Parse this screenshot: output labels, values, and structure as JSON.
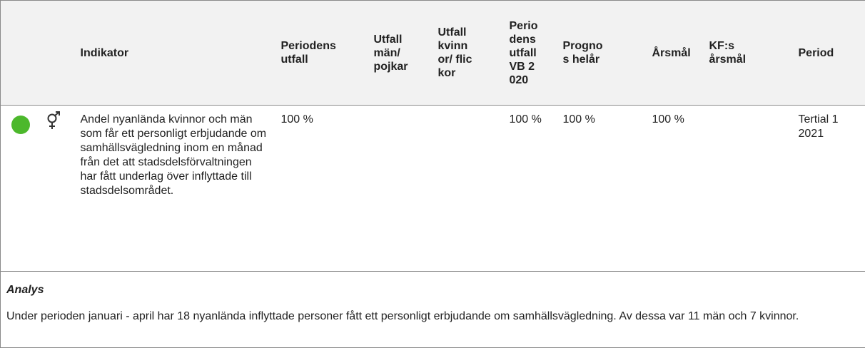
{
  "table": {
    "header": [
      "Indikator",
      "Periodens utfall",
      "Utfall män/ pojkar",
      "Utfall kvinnor/ flickor",
      "Periodens utfall VB 2020",
      "Prognos helår",
      "Årsmål",
      "KF:s årsmål",
      "Period"
    ],
    "row": {
      "indikator": "Andel nyanlända kvinnor och män som får ett personligt erbjudande om samhällsvägledning inom en månad från det att stadsdelsförvaltningen har fått underlag över inflyttade till stadsdelsområdet.",
      "periodens_utfall": "100 %",
      "utfall_vb_2020": "100 %",
      "prognos_helar": "100 %",
      "arsmal": "100 %",
      "period": "Tertial 1 2021"
    }
  },
  "analysis": {
    "title": "Analys",
    "text": "Under perioden januari - april har 18 nyanlända inflyttade personer fått ett personligt erbjudande om samhällsvägledning. Av dessa var 11 män och 7 kvinnor."
  }
}
